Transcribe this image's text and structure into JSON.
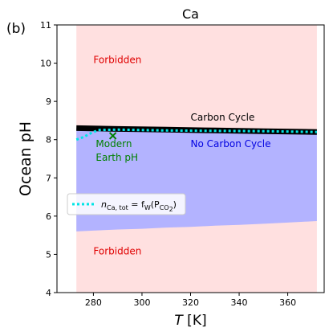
{
  "panel_label": "(b)",
  "chart_data": {
    "type": "area",
    "title": "Ca",
    "xlabel_symbol": "T",
    "xlabel_unit": " [K]",
    "ylabel": "Ocean pH",
    "xlim": [
      265,
      375
    ],
    "ylim": [
      4,
      11
    ],
    "xticks": [
      280,
      300,
      320,
      340,
      360
    ],
    "yticks": [
      4,
      5,
      6,
      7,
      8,
      9,
      10,
      11
    ],
    "grid": false,
    "colors": {
      "forbidden": "#ffe0e0",
      "no_carbon_cycle": "#b3b3ff",
      "carbon_cycle": "#000000",
      "fw_line": "#00e5e5",
      "modern_marker": "#008000",
      "forbidden_text": "#e00000",
      "no_cc_text": "#0000e0",
      "cc_text": "#000000"
    },
    "forbidden_region": {
      "x": [
        273,
        372
      ]
    },
    "no_carbon_cycle_region": {
      "x": [
        273,
        280,
        290,
        300,
        310,
        320,
        330,
        340,
        350,
        360,
        372
      ],
      "upper": [
        8.3,
        8.29,
        8.28,
        8.27,
        8.26,
        8.25,
        8.24,
        8.23,
        8.22,
        8.21,
        8.2
      ],
      "lower": [
        5.6,
        5.62,
        5.65,
        5.67,
        5.7,
        5.72,
        5.75,
        5.77,
        5.8,
        5.83,
        5.87
      ]
    },
    "carbon_cycle_line": {
      "x": [
        273,
        290,
        310,
        330,
        350,
        372
      ],
      "y": [
        8.3,
        8.28,
        8.26,
        8.24,
        8.22,
        8.2
      ]
    },
    "fw_line": {
      "x": [
        273,
        276,
        279,
        282,
        290,
        310,
        330,
        350,
        372
      ],
      "y": [
        8.0,
        8.07,
        8.17,
        8.25,
        8.26,
        8.24,
        8.23,
        8.22,
        8.2
      ]
    },
    "modern_earth": {
      "x": 288,
      "y": 8.1
    },
    "annotations": {
      "forbidden_top": {
        "text": "Forbidden",
        "x": 280,
        "y": 10.0
      },
      "forbidden_bottom": {
        "text": "Forbidden",
        "x": 280,
        "y": 5.0
      },
      "carbon_cycle": {
        "text": "Carbon Cycle",
        "x": 320,
        "y": 8.5
      },
      "no_carbon_cycle": {
        "text": "No Carbon Cycle",
        "x": 320,
        "y": 7.8
      },
      "modern_line1": {
        "text": "Modern",
        "x": 281,
        "y": 7.8
      },
      "modern_line2": {
        "text": "Earth pH",
        "x": 281,
        "y": 7.45
      }
    },
    "legend": {
      "placement": "center-left",
      "n_symbol": "n",
      "n_sub": "Ca, tot",
      "eq_text": " = f",
      "f_sub": "W",
      "p_open": "(P",
      "p_sub": "CO",
      "p_sub2": "2",
      "p_close": ")"
    }
  }
}
